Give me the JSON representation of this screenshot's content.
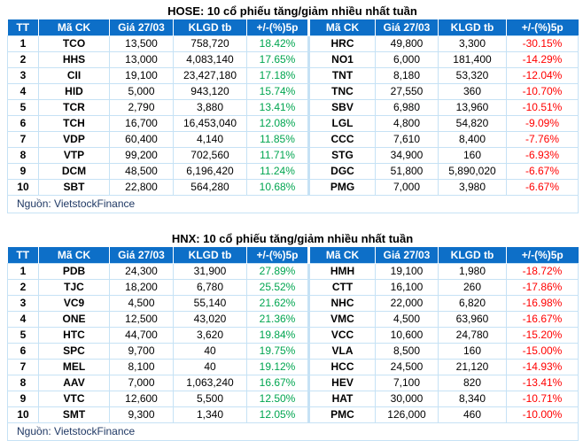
{
  "colors": {
    "header_bg": "#0d6fc8",
    "cell_border": "#c6e2f5",
    "gain_text": "#00a550",
    "loss_text": "#ff0000",
    "source_text": "#1f3864"
  },
  "chart_data": [
    {
      "type": "table",
      "title": "HOSE: 10 cổ phiếu tăng/giảm nhiều nhất tuần",
      "source": "Nguồn: VietstockFinance",
      "columns": [
        "TT",
        "Mã CK",
        "Giá 27/03",
        "KLGD tb",
        "+/-(%)5p",
        "Mã CK",
        "Giá 27/03",
        "KLGD tb",
        "+/-(%)5p"
      ],
      "rows": [
        {
          "tt": "1",
          "gainer": {
            "code": "TCO",
            "price": "13,500",
            "volume": "758,720",
            "change": "18.42%"
          },
          "loser": {
            "code": "HRC",
            "price": "49,800",
            "volume": "3,300",
            "change": "-30.15%"
          }
        },
        {
          "tt": "2",
          "gainer": {
            "code": "HHS",
            "price": "13,000",
            "volume": "4,083,140",
            "change": "17.65%"
          },
          "loser": {
            "code": "NO1",
            "price": "6,000",
            "volume": "181,400",
            "change": "-14.29%"
          }
        },
        {
          "tt": "3",
          "gainer": {
            "code": "CII",
            "price": "19,100",
            "volume": "23,427,180",
            "change": "17.18%"
          },
          "loser": {
            "code": "TNT",
            "price": "8,180",
            "volume": "53,320",
            "change": "-12.04%"
          }
        },
        {
          "tt": "4",
          "gainer": {
            "code": "HID",
            "price": "5,000",
            "volume": "943,120",
            "change": "15.74%"
          },
          "loser": {
            "code": "TNC",
            "price": "27,550",
            "volume": "360",
            "change": "-10.70%"
          }
        },
        {
          "tt": "5",
          "gainer": {
            "code": "TCR",
            "price": "2,790",
            "volume": "3,880",
            "change": "13.41%"
          },
          "loser": {
            "code": "SBV",
            "price": "6,980",
            "volume": "13,960",
            "change": "-10.51%"
          }
        },
        {
          "tt": "6",
          "gainer": {
            "code": "TCH",
            "price": "16,700",
            "volume": "16,453,040",
            "change": "12.08%"
          },
          "loser": {
            "code": "LGL",
            "price": "4,800",
            "volume": "54,820",
            "change": "-9.09%"
          }
        },
        {
          "tt": "7",
          "gainer": {
            "code": "VDP",
            "price": "60,400",
            "volume": "4,140",
            "change": "11.85%"
          },
          "loser": {
            "code": "CCC",
            "price": "7,610",
            "volume": "8,400",
            "change": "-7.76%"
          }
        },
        {
          "tt": "8",
          "gainer": {
            "code": "VTP",
            "price": "99,200",
            "volume": "702,560",
            "change": "11.71%"
          },
          "loser": {
            "code": "STG",
            "price": "34,900",
            "volume": "160",
            "change": "-6.93%"
          }
        },
        {
          "tt": "9",
          "gainer": {
            "code": "DCM",
            "price": "48,500",
            "volume": "6,196,420",
            "change": "11.24%"
          },
          "loser": {
            "code": "DGC",
            "price": "51,800",
            "volume": "5,890,020",
            "change": "-6.67%"
          }
        },
        {
          "tt": "10",
          "gainer": {
            "code": "SBT",
            "price": "22,800",
            "volume": "564,280",
            "change": "10.68%"
          },
          "loser": {
            "code": "PMG",
            "price": "7,000",
            "volume": "3,980",
            "change": "-6.67%"
          }
        }
      ]
    },
    {
      "type": "table",
      "title": "HNX: 10 cổ phiếu tăng/giảm nhiều nhất tuần",
      "source": "Nguồn: VietstockFinance",
      "columns": [
        "TT",
        "Mã CK",
        "Giá 27/03",
        "KLGD tb",
        "+/-(%)5p",
        "Mã CK",
        "Giá 27/03",
        "KLGD tb",
        "+/-(%)5p"
      ],
      "rows": [
        {
          "tt": "1",
          "gainer": {
            "code": "PDB",
            "price": "24,300",
            "volume": "31,900",
            "change": "27.89%"
          },
          "loser": {
            "code": "HMH",
            "price": "19,100",
            "volume": "1,980",
            "change": "-18.72%"
          }
        },
        {
          "tt": "2",
          "gainer": {
            "code": "TJC",
            "price": "18,200",
            "volume": "6,780",
            "change": "25.52%"
          },
          "loser": {
            "code": "CTT",
            "price": "16,100",
            "volume": "260",
            "change": "-17.86%"
          }
        },
        {
          "tt": "3",
          "gainer": {
            "code": "VC9",
            "price": "4,500",
            "volume": "55,140",
            "change": "21.62%"
          },
          "loser": {
            "code": "NHC",
            "price": "22,000",
            "volume": "6,820",
            "change": "-16.98%"
          }
        },
        {
          "tt": "4",
          "gainer": {
            "code": "ONE",
            "price": "12,500",
            "volume": "43,020",
            "change": "21.36%"
          },
          "loser": {
            "code": "VMC",
            "price": "4,500",
            "volume": "63,960",
            "change": "-16.67%"
          }
        },
        {
          "tt": "5",
          "gainer": {
            "code": "HTC",
            "price": "44,700",
            "volume": "3,620",
            "change": "19.84%"
          },
          "loser": {
            "code": "VCC",
            "price": "10,600",
            "volume": "24,780",
            "change": "-15.20%"
          }
        },
        {
          "tt": "6",
          "gainer": {
            "code": "SPC",
            "price": "9,700",
            "volume": "40",
            "change": "19.75%"
          },
          "loser": {
            "code": "VLA",
            "price": "8,500",
            "volume": "160",
            "change": "-15.00%"
          }
        },
        {
          "tt": "7",
          "gainer": {
            "code": "MEL",
            "price": "8,100",
            "volume": "40",
            "change": "19.12%"
          },
          "loser": {
            "code": "HCC",
            "price": "24,500",
            "volume": "21,120",
            "change": "-14.93%"
          }
        },
        {
          "tt": "8",
          "gainer": {
            "code": "AAV",
            "price": "7,000",
            "volume": "1,063,240",
            "change": "16.67%"
          },
          "loser": {
            "code": "HEV",
            "price": "7,100",
            "volume": "820",
            "change": "-13.41%"
          }
        },
        {
          "tt": "9",
          "gainer": {
            "code": "VTC",
            "price": "12,600",
            "volume": "5,500",
            "change": "12.50%"
          },
          "loser": {
            "code": "HAT",
            "price": "30,000",
            "volume": "8,340",
            "change": "-10.71%"
          }
        },
        {
          "tt": "10",
          "gainer": {
            "code": "SMT",
            "price": "9,300",
            "volume": "1,340",
            "change": "12.05%"
          },
          "loser": {
            "code": "PMC",
            "price": "126,000",
            "volume": "460",
            "change": "-10.00%"
          }
        }
      ]
    }
  ]
}
